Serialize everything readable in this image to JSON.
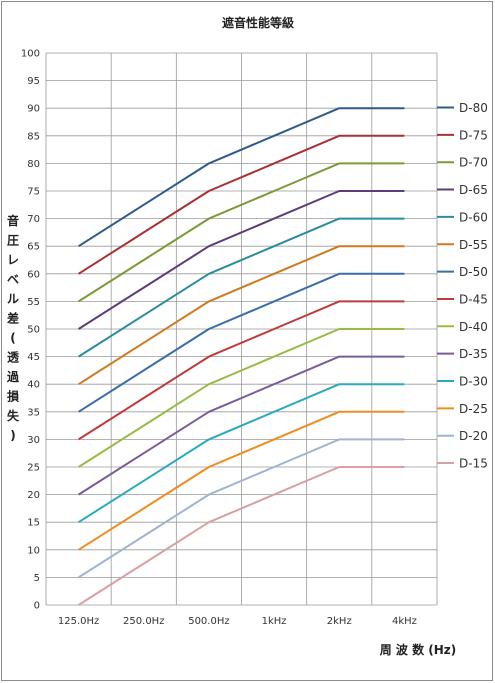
{
  "chart_data": {
    "type": "line",
    "title": "遮音性能等級",
    "xlabel": "周 波 数 (Hz)",
    "ylabel": "音圧レベル差(透過損失)",
    "categories": [
      "125.0Hz",
      "250.0Hz",
      "500.0Hz",
      "1kHz",
      "2kHz",
      "4kHz"
    ],
    "ylim": [
      0,
      100
    ],
    "ytick_step": 5,
    "grid": true,
    "legend_position": "right",
    "series": [
      {
        "name": "D-80",
        "color": "#2e5c8a",
        "values": [
          65,
          72.5,
          80,
          85,
          90,
          90
        ]
      },
      {
        "name": "D-75",
        "color": "#a83232",
        "values": [
          60,
          67.5,
          75,
          80,
          85,
          85
        ]
      },
      {
        "name": "D-70",
        "color": "#7a9a35",
        "values": [
          55,
          62.5,
          70,
          75,
          80,
          80
        ]
      },
      {
        "name": "D-65",
        "color": "#5c3d7a",
        "values": [
          50,
          57.5,
          65,
          70,
          75,
          75
        ]
      },
      {
        "name": "D-60",
        "color": "#2a8ca0",
        "values": [
          45,
          52.5,
          60,
          65,
          70,
          70
        ]
      },
      {
        "name": "D-55",
        "color": "#d07a20",
        "values": [
          40,
          47.5,
          55,
          60,
          65,
          65
        ]
      },
      {
        "name": "D-50",
        "color": "#3a6ea8",
        "values": [
          35,
          42.5,
          50,
          55,
          60,
          60
        ]
      },
      {
        "name": "D-45",
        "color": "#bf3b3b",
        "values": [
          30,
          37.5,
          45,
          50,
          55,
          55
        ]
      },
      {
        "name": "D-40",
        "color": "#98bb45",
        "values": [
          25,
          32.5,
          40,
          45,
          50,
          50
        ]
      },
      {
        "name": "D-35",
        "color": "#7a5c9a",
        "values": [
          20,
          27.5,
          35,
          40,
          45,
          45
        ]
      },
      {
        "name": "D-30",
        "color": "#2aaac0",
        "values": [
          15,
          22.5,
          30,
          35,
          40,
          40
        ]
      },
      {
        "name": "D-25",
        "color": "#f08c20",
        "values": [
          10,
          17.5,
          25,
          30,
          35,
          35
        ]
      },
      {
        "name": "D-20",
        "color": "#a0b4d2",
        "values": [
          5,
          12.5,
          20,
          25,
          30,
          30
        ]
      },
      {
        "name": "D-15",
        "color": "#d8a0a0",
        "values": [
          0,
          7.5,
          15,
          20,
          25,
          25
        ]
      }
    ]
  }
}
